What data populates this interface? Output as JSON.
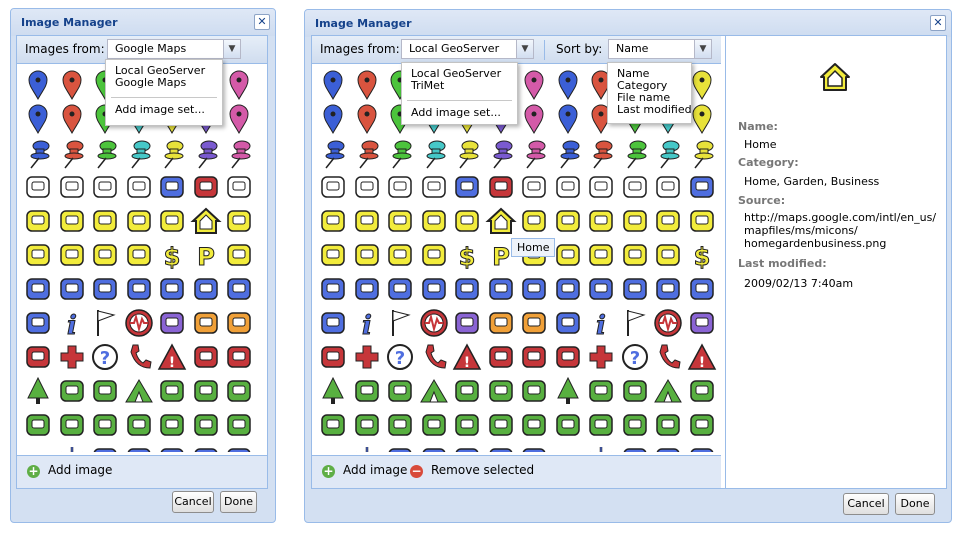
{
  "left_window": {
    "title": "Image Manager",
    "close_glyph": "✕",
    "images_from_label": "Images from:",
    "source_value": "Google Maps",
    "source_options": [
      "Local GeoServer",
      "Google Maps"
    ],
    "add_image_set": "Add image set...",
    "add_image": "Add image",
    "cancel": "Cancel",
    "done": "Done"
  },
  "right_window": {
    "title": "Image Manager",
    "close_glyph": "✕",
    "images_from_label": "Images from:",
    "source_value": "Local GeoServer",
    "source_options": [
      "Local GeoServer",
      "TriMet"
    ],
    "add_image_set": "Add image set...",
    "sort_by_label": "Sort by:",
    "sort_value": "Name",
    "sort_options": [
      "Name",
      "Category",
      "File name",
      "Last modified"
    ],
    "hover_tooltip": "Home",
    "add_image": "Add image",
    "remove_selected": "Remove selected",
    "cancel": "Cancel",
    "done": "Done",
    "details": {
      "name_label": "Name:",
      "name_value": "Home",
      "category_label": "Category:",
      "category_value": "Home, Garden, Business",
      "source_label": "Source:",
      "source_lines": [
        "http://maps.google.com/intl/en_us/",
        "mapfiles/ms/micons/",
        "homegardenbusiness.png"
      ],
      "modified_label": "Last modified:",
      "modified_value": "2009/02/13 7:40am"
    }
  },
  "icon_grid_rows": [
    [
      "blue-marker-icon",
      "red-marker-icon",
      "green-marker-icon",
      "teal-marker-icon",
      "yellow-marker-icon",
      "purple-marker-icon",
      "pink-marker-icon"
    ],
    [
      "blue-marker-icon",
      "red-marker-icon",
      "green-marker-icon",
      "teal-marker-icon",
      "yellow-marker-icon",
      "purple-marker-icon",
      "pink-marker-icon"
    ],
    [
      "blue-pushpin-icon",
      "red-pushpin-icon",
      "green-pushpin-icon",
      "teal-pushpin-icon",
      "yellow-pushpin-icon",
      "purple-pushpin-icon",
      "pink-pushpin-icon"
    ],
    [
      "restaurant-icon",
      "coffee-icon",
      "bar-icon",
      "snack-icon",
      "tram-icon",
      "lodging-icon",
      "wheelchair-icon"
    ],
    [
      "shopping-icon",
      "movies-icon",
      "grocery-icon",
      "basket-icon",
      "theater-icon",
      "home-icon",
      "tv-icon"
    ],
    [
      "mechanic-icon",
      "sunny-icon",
      "realestate-icon",
      "thermometer-icon",
      "dollar-icon",
      "parking-icon",
      "gas-icon"
    ],
    [
      "cab-icon",
      "bus-icon",
      "truck-icon",
      "rail-icon",
      "plane-icon",
      "ferry-icon",
      "helicopter-icon"
    ],
    [
      "subway-icon",
      "info-icon",
      "flag-icon",
      "earthquake-icon",
      "webcam-icon",
      "post-office-icon",
      "police-icon"
    ],
    [
      "firedept-icon",
      "hospital-icon",
      "question-icon",
      "phone-icon",
      "caution-icon",
      "fallingrocks-icon",
      "camera-icon"
    ],
    [
      "tree-icon",
      "campfire-icon",
      "picnic-icon",
      "campground-icon",
      "ranger-station-icon",
      "toilets-icon",
      "poi-icon"
    ],
    [
      "hiker-icon",
      "cycling-icon",
      "motorcycling-icon",
      "horseback-icon",
      "sportsvenue-icon",
      "golf-icon",
      "trail-icon"
    ],
    [
      "water-icon",
      "snowflake-icon",
      "marina-icon",
      "fishing-icon",
      "sailing-icon",
      "skiing-icon",
      "tram2-icon"
    ]
  ],
  "colors": {
    "blue": "#3b5fd6",
    "red": "#d9543f",
    "green": "#4cc43c",
    "teal": "#46c8c8",
    "yellow": "#e8e23a",
    "purple": "#7a5ad0",
    "pink": "#d45aa8",
    "icon_yellow": "#f2ec3c",
    "icon_blue": "#4f6ee0",
    "icon_purple": "#8a64d4",
    "icon_orange": "#f0a038",
    "icon_red": "#c6363a",
    "icon_green": "#58b040",
    "outline": "#222222"
  }
}
